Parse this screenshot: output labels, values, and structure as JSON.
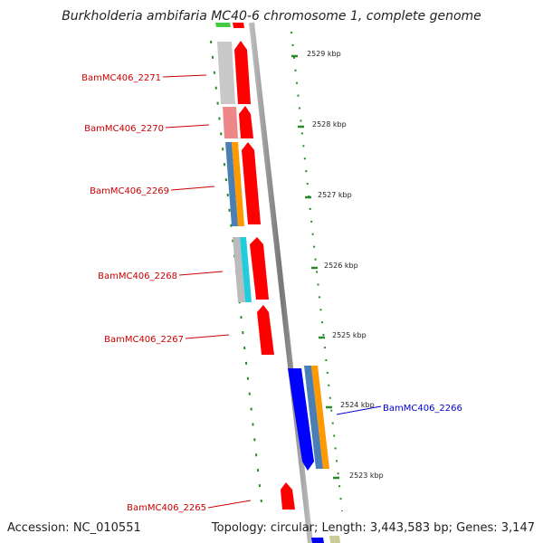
{
  "title": "Burkholderia ambifaria MC40-6 chromosome 1, complete genome",
  "accession_label": "Accession: NC_010551",
  "summary_label": "Topology: circular; Length: 3,443,583 bp; Genes: 3,147",
  "scale_labels": [
    "2529 kbp",
    "2528 kbp",
    "2527 kbp",
    "2526 kbp",
    "2525 kbp",
    "2524 kbp",
    "2523 kbp"
  ],
  "gene_labels": [
    {
      "text": "BamMC406_2271",
      "color": "#cc0000"
    },
    {
      "text": "BamMC406_2270",
      "color": "#cc0000"
    },
    {
      "text": "BamMC406_2269",
      "color": "#cc0000"
    },
    {
      "text": "BamMC406_2268",
      "color": "#cc0000"
    },
    {
      "text": "BamMC406_2267",
      "color": "#cc0000"
    },
    {
      "text": "BamMC406_2266",
      "color": "#0000cc"
    },
    {
      "text": "BamMC406_2265",
      "color": "#cc0000"
    }
  ],
  "colors": {
    "cds_red": "#ff0000",
    "cds_blue": "#0000ff",
    "orange": "#ff9900",
    "steel_blue": "#4a7fb5",
    "grey": "#c0c0c0",
    "pink": "#ee8888",
    "cyan": "#22ccdd",
    "green": "#2a8a2a",
    "backbone": "#888888"
  }
}
